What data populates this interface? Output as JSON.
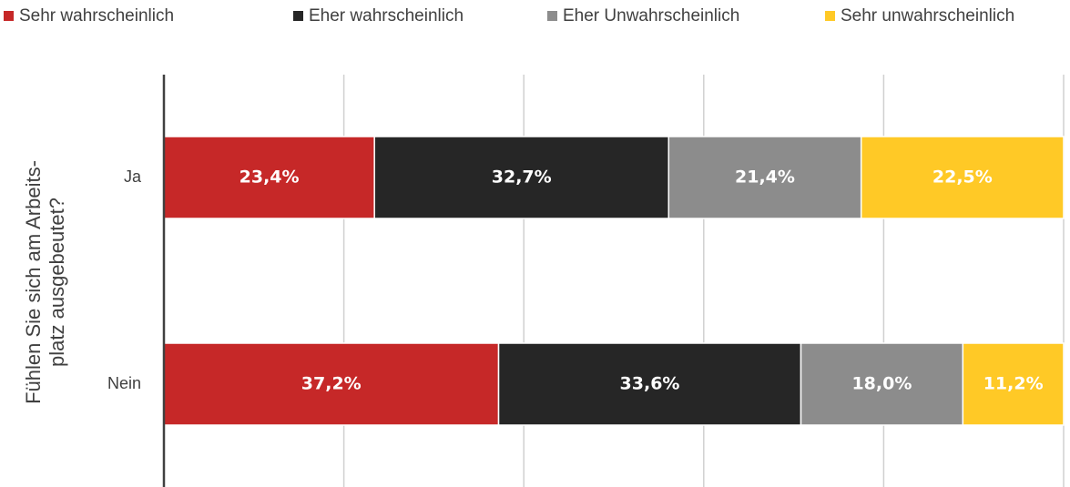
{
  "chart_data": {
    "type": "stacked_bar_horizontal",
    "ylabel": [
      "Fühlen Sie sich am Arbeits-",
      "platz ausgebeutet?"
    ],
    "categories": [
      "Ja",
      "Nein"
    ],
    "series": [
      {
        "name": "Sehr wahrscheinlich",
        "color": "#c62828",
        "values": [
          23.4,
          37.2
        ],
        "value_labels": [
          "23,4%",
          "37,2%"
        ]
      },
      {
        "name": "Eher wahrscheinlich",
        "color": "#262626",
        "values": [
          32.7,
          33.6
        ],
        "value_labels": [
          "32,7%",
          "33,6%"
        ]
      },
      {
        "name": "Eher Unwahrscheinlich",
        "color": "#8c8c8c",
        "values": [
          21.4,
          18.0
        ],
        "value_labels": [
          "21,4%",
          "18,0%"
        ]
      },
      {
        "name": "Sehr unwahrscheinlich",
        "color": "#ffc926",
        "values": [
          22.5,
          11.2
        ],
        "value_labels": [
          "22,5%",
          "11,2%"
        ]
      }
    ],
    "xlim": [
      0,
      100
    ],
    "xticks": [
      0,
      20,
      40,
      60,
      80,
      100
    ],
    "grid": true,
    "legend": "top"
  }
}
